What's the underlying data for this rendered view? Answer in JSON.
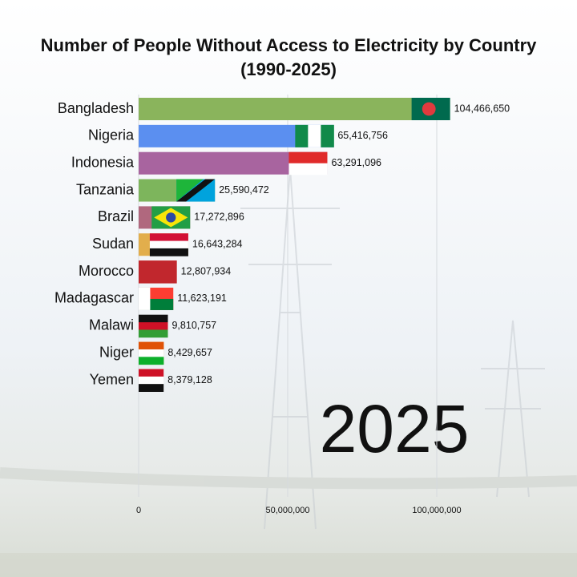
{
  "chart_data": {
    "type": "bar",
    "orientation": "horizontal",
    "title": "Number of People Without Access to Electricity by Country",
    "subtitle": "(1990-2025)",
    "annotation": "2025",
    "categories": [
      "Bangladesh",
      "Nigeria",
      "Indonesia",
      "Tanzania",
      "Brazil",
      "Sudan",
      "Morocco",
      "Madagascar",
      "Malawi",
      "Niger",
      "Yemen"
    ],
    "values": [
      104466650,
      65416756,
      63291096,
      25590472,
      17272896,
      16643284,
      12807934,
      11623191,
      9810757,
      8429657,
      8379128
    ],
    "value_labels": [
      "104,466,650",
      "65,416,756",
      "63,291,096",
      "25,590,472",
      "17,272,896",
      "16,643,284",
      "12,807,934",
      "11,623,191",
      "9,810,757",
      "8,429,657",
      "8,379,128"
    ],
    "colors": [
      "#8ab45c",
      "#5b8ff0",
      "#a8649f",
      "#7db55c",
      "#b0687e",
      "#e2ae4c",
      "#f2c4a6",
      "#e8e8e8",
      "#3a3a3a",
      "#f09a50",
      "#d8d8d8"
    ],
    "xlim": [
      0,
      120000000
    ],
    "xticks": [
      0,
      {
        "value": 50000000,
        "label": "50,000,000"
      },
      {
        "value": 100000000,
        "label": "100,000,000"
      }
    ],
    "grid": true
  }
}
